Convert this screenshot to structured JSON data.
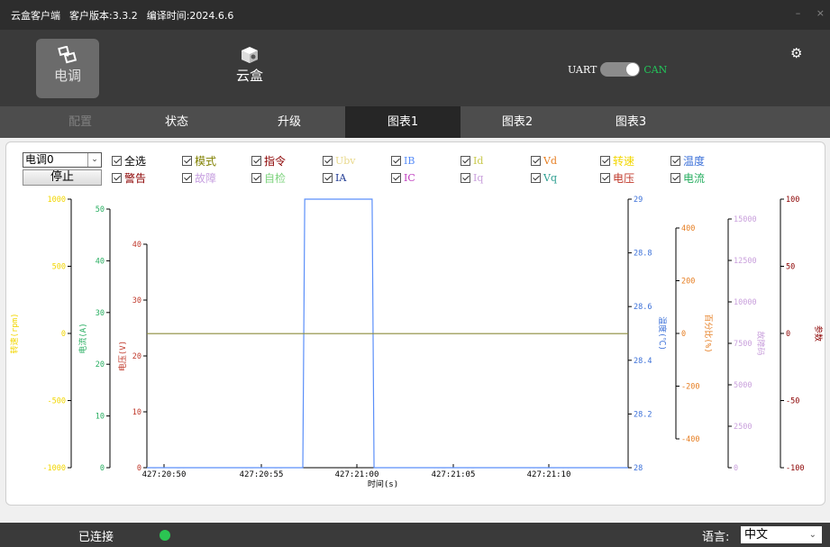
{
  "titlebar": {
    "app_name": "云盒客户端",
    "version": "客户版本:3.3.2",
    "build_time": "编译时间:2024.6.6",
    "minimize": "–",
    "close": "×"
  },
  "header": {
    "devices": [
      {
        "label": "电调",
        "icon": "esc-icon"
      },
      {
        "label": "云盒",
        "icon": "cloud-box-icon"
      }
    ],
    "uart_label": "UART",
    "can_label": "CAN",
    "settings_icon": "gear-icon"
  },
  "tabs": [
    {
      "label": "配置"
    },
    {
      "label": "状态"
    },
    {
      "label": "升级"
    },
    {
      "label": "图表1"
    },
    {
      "label": "图表2"
    },
    {
      "label": "图表3"
    }
  ],
  "controls": {
    "esc_select": "电调0",
    "stop_button": "停止"
  },
  "checkboxes": [
    {
      "label": "全选",
      "color": "#000000"
    },
    {
      "label": "模式",
      "color": "#808000"
    },
    {
      "label": "指令",
      "color": "#8b0000"
    },
    {
      "label": "Ubv",
      "color": "#e8d88a"
    },
    {
      "label": "IB",
      "color": "#5b8ff9"
    },
    {
      "label": "Id",
      "color": "#c8c84a"
    },
    {
      "label": "Vd",
      "color": "#e67e22"
    },
    {
      "label": "转速",
      "color": "#f2d600"
    },
    {
      "label": "温度",
      "color": "#3a6fd8"
    },
    {
      "label": "警告",
      "color": "#8b0000"
    },
    {
      "label": "故障",
      "color": "#c7a0e0"
    },
    {
      "label": "自检",
      "color": "#7fd37f"
    },
    {
      "label": "IA",
      "color": "#1f3a93"
    },
    {
      "label": "IC",
      "color": "#c040c0"
    },
    {
      "label": "Iq",
      "color": "#c9a0dc"
    },
    {
      "label": "Vq",
      "color": "#2a9d8f"
    },
    {
      "label": "电压",
      "color": "#c0392b"
    },
    {
      "label": "电流",
      "color": "#27ae60"
    }
  ],
  "chart_data": {
    "type": "line",
    "xlabel": "时间(s)",
    "x_ticks": [
      "427:20:50",
      "427:20:55",
      "427:21:00",
      "427:21:05",
      "427:21:10"
    ],
    "left_axes": [
      {
        "name": "转速(rpm)",
        "ticks": [
          "1000",
          "500",
          "0",
          "-500",
          "-1000"
        ],
        "color": "#f2d600"
      },
      {
        "name": "电流(A)",
        "ticks": [
          "50",
          "40",
          "30",
          "20",
          "10",
          "0"
        ],
        "color": "#27ae60"
      },
      {
        "name": "电压(V)",
        "ticks": [
          "40",
          "30",
          "20",
          "10",
          "0"
        ],
        "color": "#c0392b"
      }
    ],
    "right_axes": [
      {
        "name": "温度(℃)",
        "ticks": [
          "29",
          "28.8",
          "28.6",
          "28.4",
          "28.2",
          "28"
        ],
        "color": "#3a6fd8"
      },
      {
        "name": "百分比(%)",
        "ticks": [
          "400",
          "200",
          "0",
          "-200",
          "-400"
        ],
        "color": "#e67e22"
      },
      {
        "name": "故障码",
        "ticks": [
          "15000",
          "12500",
          "10000",
          "7500",
          "5000",
          "2500",
          "0"
        ],
        "color": "#c9a0dc"
      },
      {
        "name": "参数",
        "ticks": [
          "100",
          "50",
          "0",
          "-50",
          "-100"
        ],
        "color": "#8b0000"
      }
    ],
    "series": [
      {
        "name": "温度",
        "color": "#5b8ff9",
        "x_sec": [
          0,
          8.1,
          8.2,
          11.7,
          11.8,
          25
        ],
        "y": [
          28,
          28,
          29,
          29,
          28,
          28
        ]
      },
      {
        "name": "电压",
        "color": "#8c8c3c",
        "x_sec": [
          0,
          25
        ],
        "y": [
          24,
          24
        ]
      }
    ],
    "xlim_sec": [
      0,
      25
    ],
    "grid": false
  },
  "status": {
    "connection": "已连接",
    "connected_color": "#2bc552",
    "language_label": "语言:",
    "language_value": "中文"
  }
}
